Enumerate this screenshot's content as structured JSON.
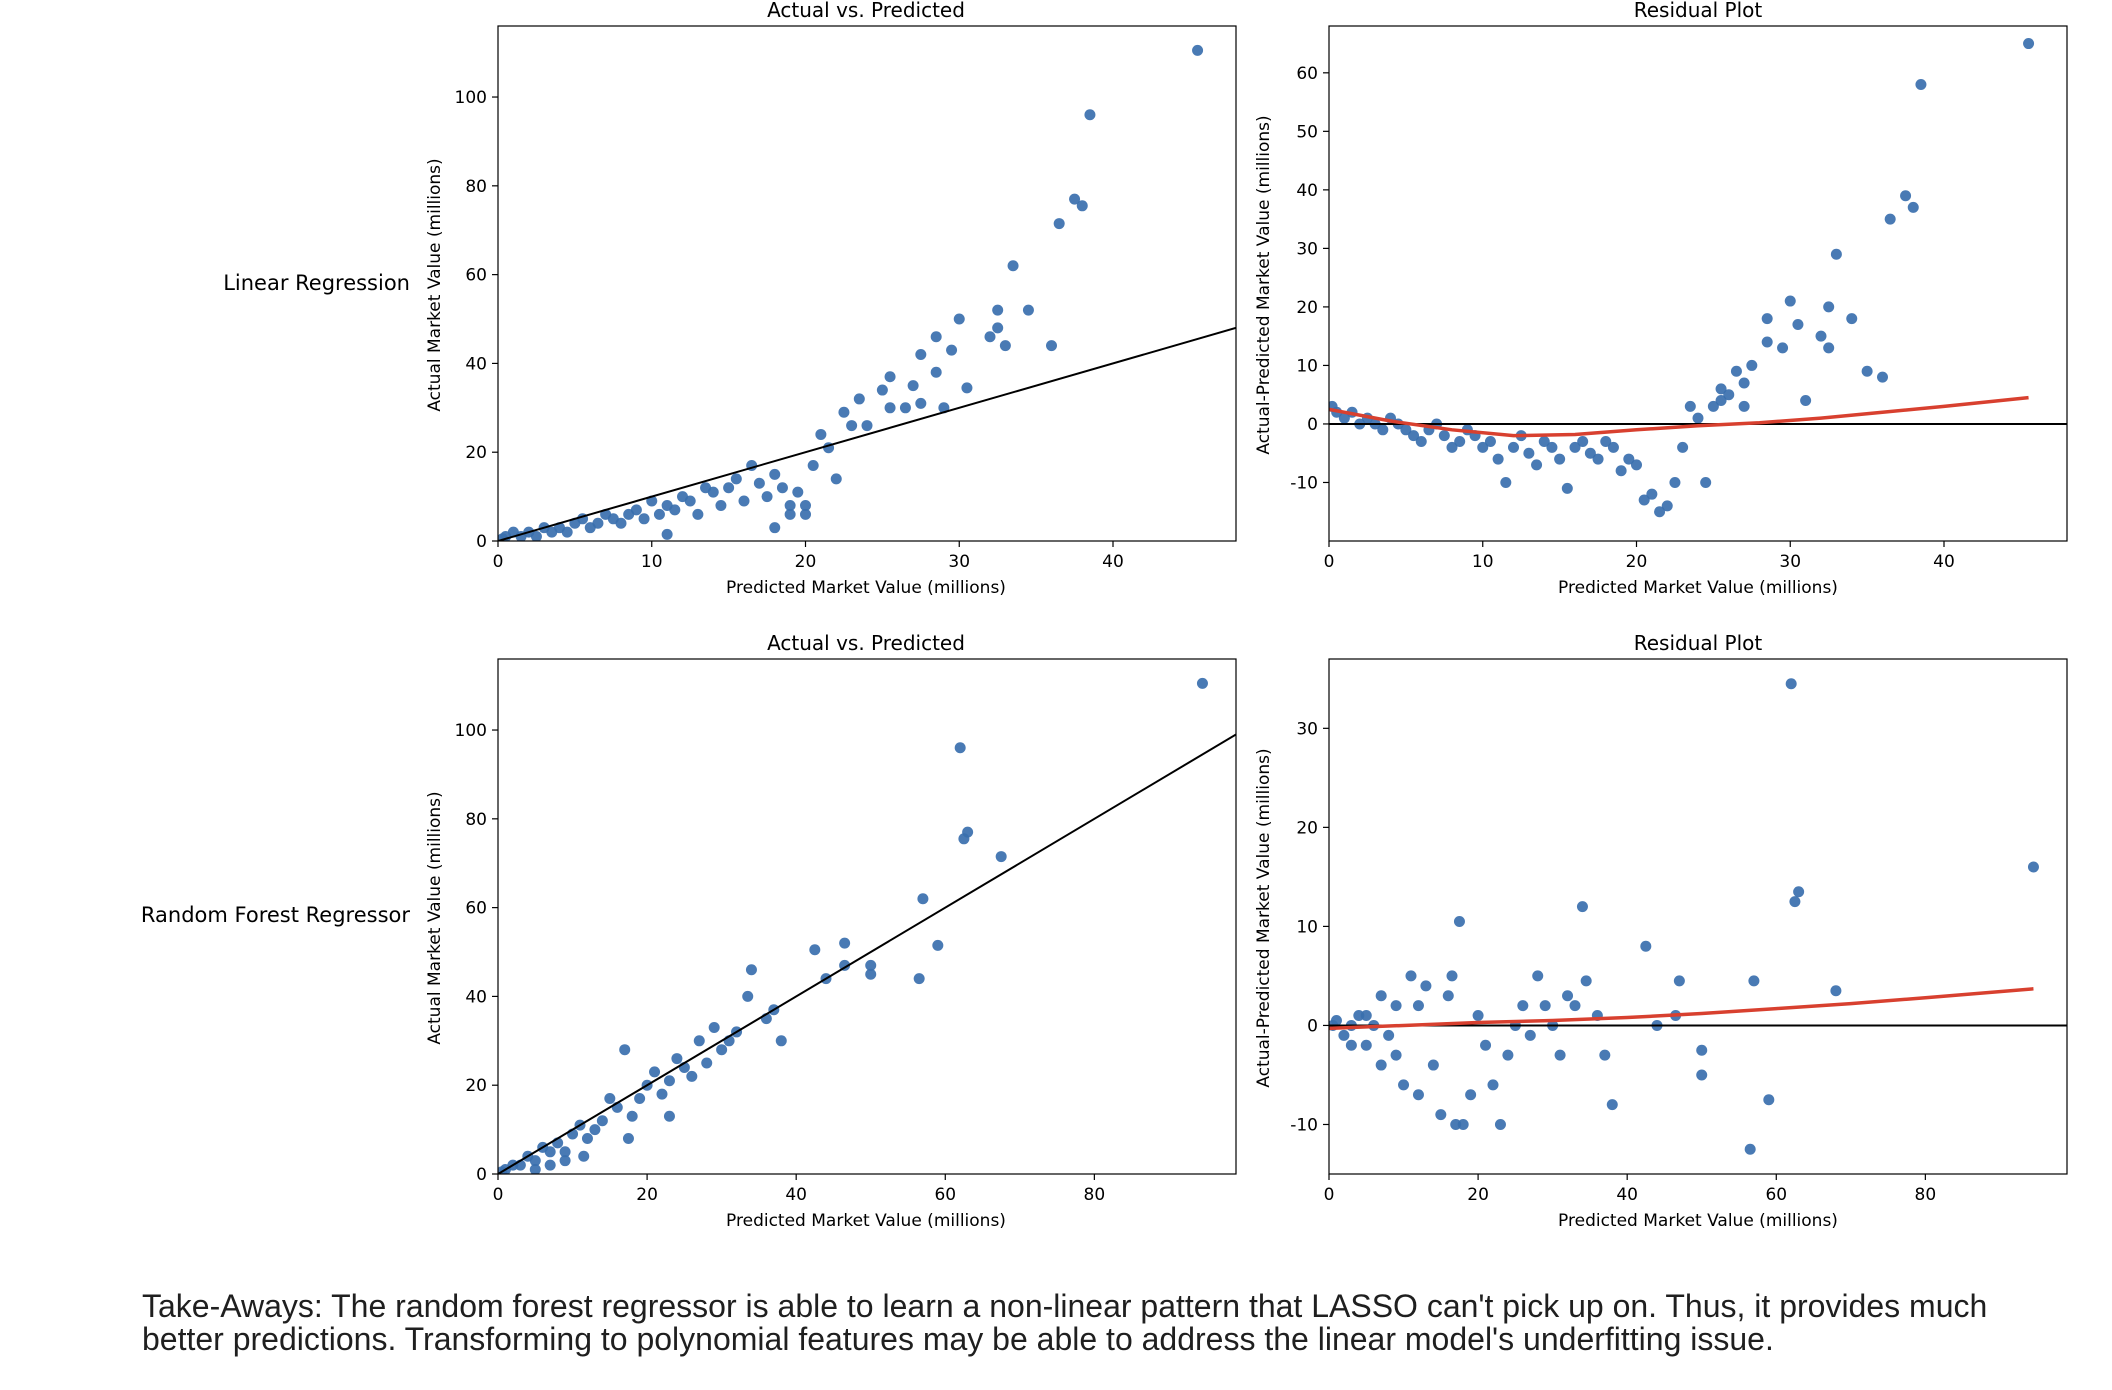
{
  "rows": [
    {
      "label": "Linear Regression"
    },
    {
      "label": "Random Forest Regressor"
    }
  ],
  "takeaways": "Take-Aways: The random forest regressor is able to learn a non-linear pattern that LASSO can't pick up on. Thus, it provides much better predictions. Transforming to polynomial features may be able to address the linear model's underfitting issue.",
  "colors": {
    "points": "#3a6fae",
    "reference_line": "#000000",
    "trend_line": "#d8402f"
  },
  "chart_data": [
    {
      "type": "scatter",
      "title": "Actual vs. Predicted",
      "xlabel": "Predicted Market Value (millions)",
      "ylabel": "Actual Market Value (millions)",
      "xlim": [
        0,
        48
      ],
      "ylim": [
        0,
        116
      ],
      "xticks": [
        0,
        10,
        20,
        30,
        40
      ],
      "yticks": [
        0,
        20,
        40,
        60,
        80,
        100
      ],
      "reference_line": {
        "x": [
          0,
          48
        ],
        "y": [
          0,
          48
        ]
      },
      "points": [
        [
          45.5,
          110.5
        ],
        [
          38.5,
          96
        ],
        [
          38,
          75.5
        ],
        [
          37.5,
          77
        ],
        [
          36.5,
          71.5
        ],
        [
          36,
          44
        ],
        [
          34.5,
          52
        ],
        [
          33.5,
          62
        ],
        [
          33,
          44
        ],
        [
          32.5,
          48
        ],
        [
          32.5,
          52
        ],
        [
          32,
          46
        ],
        [
          30.5,
          34.5
        ],
        [
          30,
          50
        ],
        [
          29.5,
          43
        ],
        [
          29,
          30
        ],
        [
          28.5,
          38
        ],
        [
          28.5,
          46
        ],
        [
          27.5,
          42
        ],
        [
          27.5,
          31
        ],
        [
          27,
          35
        ],
        [
          26.5,
          30
        ],
        [
          25.5,
          37
        ],
        [
          25.5,
          30
        ],
        [
          25,
          34
        ],
        [
          24,
          26
        ],
        [
          23.5,
          32
        ],
        [
          23,
          26
        ],
        [
          22.5,
          29
        ],
        [
          22,
          14
        ],
        [
          21.5,
          21
        ],
        [
          21,
          24
        ],
        [
          20.5,
          17
        ],
        [
          20,
          6
        ],
        [
          19.5,
          11
        ],
        [
          19,
          8
        ],
        [
          18.5,
          12
        ],
        [
          18,
          15
        ],
        [
          17.5,
          10
        ],
        [
          17,
          13
        ],
        [
          16.5,
          17
        ],
        [
          16,
          9
        ],
        [
          15.5,
          14
        ],
        [
          15,
          12
        ],
        [
          14.5,
          8
        ],
        [
          14,
          11
        ],
        [
          13.5,
          12
        ],
        [
          13,
          6
        ],
        [
          12.5,
          9
        ],
        [
          12,
          10
        ],
        [
          11.5,
          7
        ],
        [
          11,
          8
        ],
        [
          10.5,
          6
        ],
        [
          10,
          9
        ],
        [
          9.5,
          5
        ],
        [
          9,
          7
        ],
        [
          8.5,
          6
        ],
        [
          8,
          4
        ],
        [
          7.5,
          5
        ],
        [
          7,
          6
        ],
        [
          6.5,
          4
        ],
        [
          6,
          3
        ],
        [
          5.5,
          5
        ],
        [
          5,
          4
        ],
        [
          4.5,
          2
        ],
        [
          4,
          3
        ],
        [
          3.5,
          2
        ],
        [
          3,
          3
        ],
        [
          2.5,
          1
        ],
        [
          2,
          2
        ],
        [
          1.5,
          1
        ],
        [
          1,
          2
        ],
        [
          0.5,
          1
        ],
        [
          0.3,
          0.5
        ],
        [
          11,
          1.5
        ],
        [
          18,
          3
        ],
        [
          20,
          8
        ],
        [
          19,
          6
        ]
      ]
    },
    {
      "type": "scatter",
      "title": "Residual Plot",
      "xlabel": "Predicted Market Value (millions)",
      "ylabel": "Actual-Predicted Market Value (millions)",
      "xlim": [
        0,
        48
      ],
      "ylim": [
        -20,
        68
      ],
      "xticks": [
        0,
        10,
        20,
        30,
        40
      ],
      "yticks": [
        -10,
        0,
        10,
        20,
        30,
        40,
        50,
        60
      ],
      "reference_line": {
        "x": [
          0,
          48
        ],
        "y": [
          0,
          0
        ]
      },
      "trend_line": {
        "x": [
          0,
          4,
          8,
          12,
          16,
          20,
          24,
          28,
          32,
          36,
          40,
          45.5
        ],
        "y": [
          2.5,
          0.5,
          -1,
          -2,
          -1.8,
          -1,
          -0.3,
          0.2,
          1,
          2,
          3,
          4.5
        ]
      },
      "points": [
        [
          45.5,
          65
        ],
        [
          38.5,
          58
        ],
        [
          38,
          37
        ],
        [
          37.5,
          39
        ],
        [
          36.5,
          35
        ],
        [
          36,
          8
        ],
        [
          35,
          9
        ],
        [
          34,
          18
        ],
        [
          33,
          29
        ],
        [
          32.5,
          20
        ],
        [
          32.5,
          13
        ],
        [
          32,
          15
        ],
        [
          31,
          4
        ],
        [
          30.5,
          17
        ],
        [
          30,
          21
        ],
        [
          29.5,
          13
        ],
        [
          28.5,
          18
        ],
        [
          28.5,
          14
        ],
        [
          27.5,
          10
        ],
        [
          27,
          3
        ],
        [
          27,
          7
        ],
        [
          26.5,
          9
        ],
        [
          25.5,
          6
        ],
        [
          25,
          3
        ],
        [
          24,
          1
        ],
        [
          23.5,
          3
        ],
        [
          23,
          -4
        ],
        [
          22.5,
          -10
        ],
        [
          22,
          -14
        ],
        [
          21.5,
          -15
        ],
        [
          21,
          -12
        ],
        [
          20.5,
          -13
        ],
        [
          20,
          -7
        ],
        [
          19.5,
          -6
        ],
        [
          19,
          -8
        ],
        [
          18.5,
          -4
        ],
        [
          18,
          -3
        ],
        [
          17.5,
          -6
        ],
        [
          17,
          -5
        ],
        [
          16.5,
          -3
        ],
        [
          16,
          -4
        ],
        [
          15.5,
          -11
        ],
        [
          15,
          -6
        ],
        [
          14.5,
          -4
        ],
        [
          14,
          -3
        ],
        [
          13.5,
          -7
        ],
        [
          13,
          -5
        ],
        [
          12.5,
          -2
        ],
        [
          12,
          -4
        ],
        [
          11.5,
          -10
        ],
        [
          11,
          -6
        ],
        [
          10.5,
          -3
        ],
        [
          10,
          -4
        ],
        [
          9.5,
          -2
        ],
        [
          9,
          -1
        ],
        [
          8.5,
          -3
        ],
        [
          8,
          -4
        ],
        [
          7.5,
          -2
        ],
        [
          7,
          0
        ],
        [
          6.5,
          -1
        ],
        [
          6,
          -3
        ],
        [
          5.5,
          -2
        ],
        [
          5,
          -1
        ],
        [
          4.5,
          0
        ],
        [
          4,
          1
        ],
        [
          3.5,
          -1
        ],
        [
          3,
          0
        ],
        [
          2.5,
          1
        ],
        [
          2,
          0
        ],
        [
          1.5,
          2
        ],
        [
          1,
          1
        ],
        [
          0.5,
          2
        ],
        [
          0.2,
          3
        ],
        [
          24.5,
          -10
        ],
        [
          25.5,
          4
        ],
        [
          26,
          5
        ]
      ]
    },
    {
      "type": "scatter",
      "title": "Actual vs. Predicted",
      "xlabel": "Predicted Market Value (millions)",
      "ylabel": "Actual Market Value (millions)",
      "xlim": [
        0,
        99
      ],
      "ylim": [
        0,
        116
      ],
      "xticks": [
        0,
        20,
        40,
        60,
        80
      ],
      "yticks": [
        0,
        20,
        40,
        60,
        80,
        100
      ],
      "reference_line": {
        "x": [
          0,
          99
        ],
        "y": [
          0,
          99
        ]
      },
      "points": [
        [
          94.5,
          110.5
        ],
        [
          62,
          96
        ],
        [
          63,
          77
        ],
        [
          62.5,
          75.5
        ],
        [
          67.5,
          71.5
        ],
        [
          57,
          62
        ],
        [
          59,
          51.5
        ],
        [
          56.5,
          44
        ],
        [
          50,
          45
        ],
        [
          50,
          47
        ],
        [
          46.5,
          52
        ],
        [
          46.5,
          47
        ],
        [
          44,
          44
        ],
        [
          42.5,
          50.5
        ],
        [
          38,
          30
        ],
        [
          37,
          37
        ],
        [
          36,
          35
        ],
        [
          34,
          46
        ],
        [
          33.5,
          40
        ],
        [
          32,
          32
        ],
        [
          31,
          30
        ],
        [
          30,
          28
        ],
        [
          29,
          33
        ],
        [
          28,
          25
        ],
        [
          27,
          30
        ],
        [
          26,
          22
        ],
        [
          25,
          24
        ],
        [
          24,
          26
        ],
        [
          23,
          21
        ],
        [
          22,
          18
        ],
        [
          21,
          23
        ],
        [
          20,
          20
        ],
        [
          19,
          17
        ],
        [
          18,
          13
        ],
        [
          17,
          28
        ],
        [
          16,
          15
        ],
        [
          15,
          17
        ],
        [
          14,
          12
        ],
        [
          13,
          10
        ],
        [
          12,
          8
        ],
        [
          11,
          11
        ],
        [
          10,
          9
        ],
        [
          9,
          5
        ],
        [
          8,
          7
        ],
        [
          7,
          5
        ],
        [
          6,
          6
        ],
        [
          5,
          3
        ],
        [
          4,
          4
        ],
        [
          3,
          2
        ],
        [
          2,
          2
        ],
        [
          1,
          1
        ],
        [
          0.5,
          0.5
        ],
        [
          23,
          13
        ],
        [
          17.5,
          8
        ],
        [
          11.5,
          4
        ],
        [
          9,
          3
        ],
        [
          7,
          2
        ],
        [
          5,
          1
        ]
      ]
    },
    {
      "type": "scatter",
      "title": "Residual Plot",
      "xlabel": "Predicted Market Value (millions)",
      "ylabel": "Actual-Predicted Market Value (millions)",
      "xlim": [
        0,
        99
      ],
      "ylim": [
        -15,
        37
      ],
      "xticks": [
        0,
        20,
        40,
        60,
        80
      ],
      "yticks": [
        -10,
        0,
        10,
        20,
        30
      ],
      "reference_line": {
        "x": [
          0,
          99
        ],
        "y": [
          0,
          0
        ]
      },
      "trend_line": {
        "x": [
          0,
          10,
          20,
          30,
          40,
          50,
          60,
          70,
          80,
          94.5
        ],
        "y": [
          -0.3,
          0,
          0.3,
          0.5,
          0.8,
          1.2,
          1.7,
          2.2,
          2.8,
          3.7
        ]
      },
      "points": [
        [
          94.5,
          16
        ],
        [
          62,
          34.5
        ],
        [
          63,
          13.5
        ],
        [
          62.5,
          12.5
        ],
        [
          68,
          3.5
        ],
        [
          59,
          -7.5
        ],
        [
          57,
          4.5
        ],
        [
          56.5,
          -12.5
        ],
        [
          50,
          -2.5
        ],
        [
          50,
          -5
        ],
        [
          47,
          4.5
        ],
        [
          46.5,
          1
        ],
        [
          44,
          0
        ],
        [
          42.5,
          8
        ],
        [
          38,
          -8
        ],
        [
          37,
          -3
        ],
        [
          36,
          1
        ],
        [
          34.5,
          4.5
        ],
        [
          34,
          12
        ],
        [
          33,
          2
        ],
        [
          32,
          3
        ],
        [
          31,
          -3
        ],
        [
          30,
          0
        ],
        [
          29,
          2
        ],
        [
          28,
          5
        ],
        [
          27,
          -1
        ],
        [
          26,
          2
        ],
        [
          25,
          0
        ],
        [
          24,
          -3
        ],
        [
          23,
          -10
        ],
        [
          22,
          -6
        ],
        [
          21,
          -2
        ],
        [
          20,
          1
        ],
        [
          19,
          -7
        ],
        [
          18,
          -10
        ],
        [
          17.5,
          10.5
        ],
        [
          17,
          -10
        ],
        [
          16,
          3
        ],
        [
          15,
          -9
        ],
        [
          14,
          -4
        ],
        [
          13,
          4
        ],
        [
          12,
          -7
        ],
        [
          11,
          5
        ],
        [
          10,
          -6
        ],
        [
          9,
          2
        ],
        [
          8,
          -1
        ],
        [
          7,
          3
        ],
        [
          6,
          0
        ],
        [
          5,
          -2
        ],
        [
          4,
          1
        ],
        [
          3,
          0
        ],
        [
          2,
          -1
        ],
        [
          1,
          0.5
        ],
        [
          0.5,
          0
        ],
        [
          16.5,
          5
        ],
        [
          12,
          2
        ],
        [
          9,
          -3
        ],
        [
          7,
          -4
        ],
        [
          5,
          1
        ],
        [
          3,
          -2
        ]
      ]
    }
  ]
}
